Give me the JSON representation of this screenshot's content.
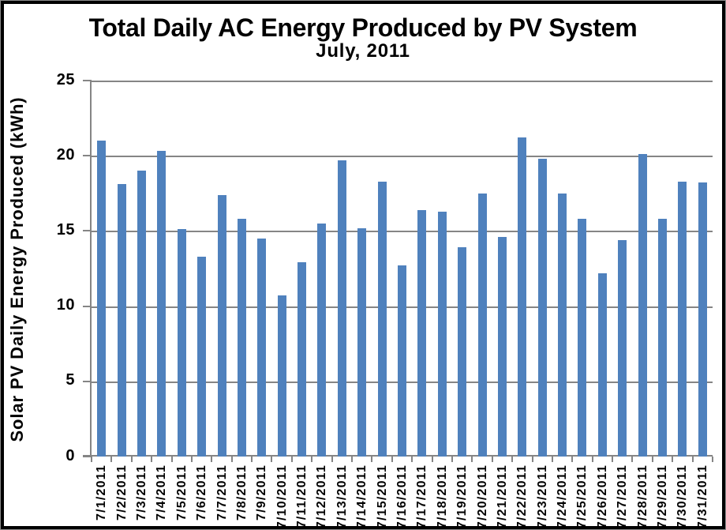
{
  "chart_data": {
    "type": "bar",
    "title": "Total Daily AC Energy Produced by PV System",
    "subtitle": "July, 2011",
    "ylabel": "Solar PV Daily Energy Produced (kWh)",
    "xlabel": "",
    "categories": [
      "7/1/2011",
      "7/2/2011",
      "7/3/2011",
      "7/4/2011",
      "7/5/2011",
      "7/6/2011",
      "7/7/2011",
      "7/8/2011",
      "7/9/2011",
      "7/10/2011",
      "7/11/2011",
      "7/12/2011",
      "7/13/2011",
      "7/14/2011",
      "7/15/2011",
      "7/16/2011",
      "7/17/2011",
      "7/18/2011",
      "7/19/2011",
      "7/20/2011",
      "7/21/2011",
      "7/22/2011",
      "7/23/2011",
      "7/24/2011",
      "7/25/2011",
      "7/26/2011",
      "7/27/2011",
      "7/28/2011",
      "7/29/2011",
      "7/30/2011",
      "7/31/2011"
    ],
    "values": [
      21.0,
      18.1,
      19.0,
      20.3,
      15.1,
      13.3,
      17.4,
      15.8,
      14.5,
      10.7,
      12.9,
      15.5,
      19.7,
      15.2,
      18.3,
      12.7,
      16.4,
      16.3,
      13.9,
      17.5,
      14.6,
      21.2,
      19.8,
      17.5,
      15.8,
      12.2,
      14.4,
      20.1,
      15.8,
      18.3,
      18.2
    ],
    "ylim": [
      0,
      25
    ],
    "yticks": [
      0,
      5,
      10,
      15,
      20,
      25
    ],
    "grid": true,
    "legend": false,
    "bar_color": "#4F81BD",
    "axis_color": "#858585",
    "text_color": "#000000",
    "background": "#FFFFFF"
  }
}
